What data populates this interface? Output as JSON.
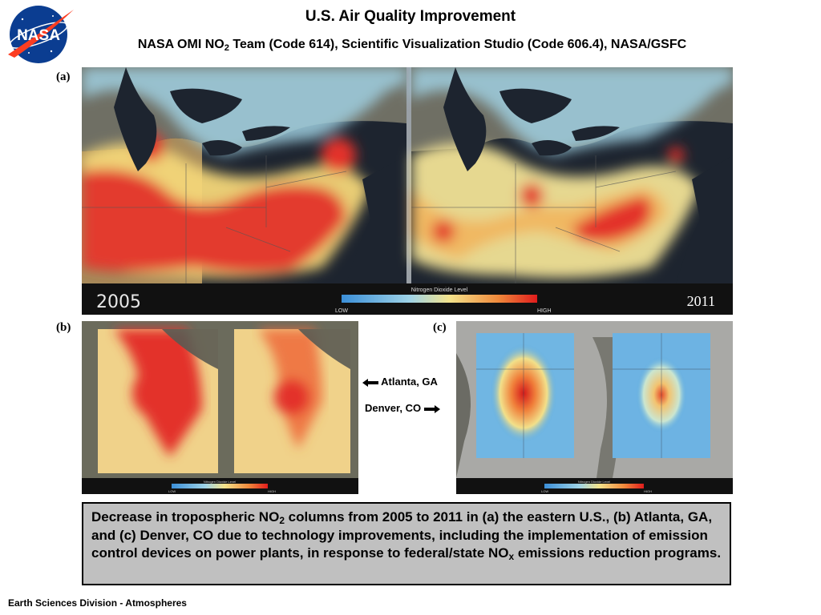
{
  "header": {
    "title": "U.S. Air Quality Improvement",
    "subtitle_prefix": "NASA OMI NO",
    "subtitle_sub": "2",
    "subtitle_rest": " Team (Code 614), Scientific Visualization Studio (Code 606.4), NASA/GSFC",
    "logo_text": "NASA"
  },
  "panels": {
    "a": {
      "label": "(a)",
      "year_left": "2005",
      "year_right": "2011",
      "legend_title": "Nitrogen Dioxide Level",
      "legend_low": "LOW",
      "legend_high": "HIGH"
    },
    "b": {
      "label": "(b)",
      "legend_title": "Nitrogen Dioxide Level",
      "legend_low": "LOW",
      "legend_high": "HIGH"
    },
    "c": {
      "label": "(c)",
      "legend_title": "Nitrogen Dioxide Level",
      "legend_low": "LOW",
      "legend_high": "HIGH"
    }
  },
  "annotations": {
    "atlanta": "Atlanta, GA",
    "denver": "Denver, CO"
  },
  "caption": {
    "part1": "Decrease in tropospheric NO",
    "sub1": "2",
    "part2": " columns from 2005 to 2011 in (a) the eastern U.S., (b) Atlanta, GA, and (c) Denver, CO due to technology improvements, including the implementation of emission control devices on power plants, in response to federal/state NO",
    "sub2": "x",
    "part3": " emissions reduction programs."
  },
  "footer": "Earth Sciences Division - Atmospheres",
  "colors": {
    "no2_low": "#4aa3df",
    "no2_mid": "#f2e08a",
    "no2_high": "#e8241c",
    "water": "#1c2330",
    "land": "#6e6e62",
    "caption_bg": "#c0c0c0"
  }
}
